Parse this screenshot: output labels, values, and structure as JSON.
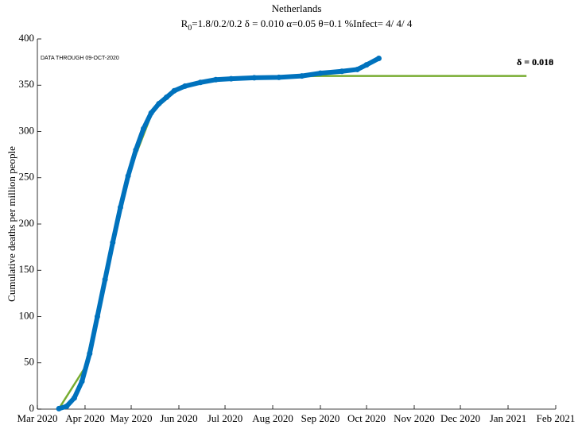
{
  "chart_data": {
    "type": "line",
    "title": "Netherlands",
    "subtitle": [
      "R",
      "0",
      "=1.8/0.2/0.2  δ = 0.010  α=0.05  θ=0.1  %Infect= 4/ 4/ 4"
    ],
    "y_label": "Cumulative deaths per million people",
    "annotations": [
      "DATA THROUGH 09-OCT-2020",
      "δ = 0.010",
      "δ = 0.018"
    ],
    "xlim": [
      "2020-03-01",
      "2021-02-01"
    ],
    "xticks": [
      {
        "value": "2020-03-01",
        "label": "Mar 2020"
      },
      {
        "value": "2020-04-01",
        "label": "Apr 2020"
      },
      {
        "value": "2020-05-01",
        "label": "May 2020"
      },
      {
        "value": "2020-06-01",
        "label": "Jun 2020"
      },
      {
        "value": "2020-07-01",
        "label": "Jul 2020"
      },
      {
        "value": "2020-08-01",
        "label": "Aug 2020"
      },
      {
        "value": "2020-09-01",
        "label": "Sep 2020"
      },
      {
        "value": "2020-10-01",
        "label": "Oct 2020"
      },
      {
        "value": "2020-11-01",
        "label": "Nov 2020"
      },
      {
        "value": "2020-12-01",
        "label": "Dec 2020"
      },
      {
        "value": "2021-01-01",
        "label": "Jan 2021"
      },
      {
        "value": "2021-02-01",
        "label": "Feb 2021"
      }
    ],
    "ylim": [
      0,
      400
    ],
    "yticks": [
      0,
      50,
      100,
      150,
      200,
      250,
      300,
      350,
      400
    ],
    "series": [
      {
        "color": "#77ac30",
        "x": [
          "2020-03-15",
          "2020-04-01",
          "2020-04-15",
          "2020-05-01",
          "2020-05-15",
          "2020-06-01",
          "2020-07-01",
          "2020-08-01",
          "2020-09-01",
          "2021-01-13"
        ],
        "values": [
          0.5,
          45,
          148,
          262,
          322,
          347,
          357,
          359,
          360,
          360
        ]
      },
      {
        "color": "#0072bd",
        "x": [
          "2020-03-15",
          "2020-03-20",
          "2020-03-25",
          "2020-03-30",
          "2020-04-04",
          "2020-04-09",
          "2020-04-14",
          "2020-04-19",
          "2020-04-24",
          "2020-04-29",
          "2020-05-04",
          "2020-05-09",
          "2020-05-14",
          "2020-05-19",
          "2020-05-24",
          "2020-05-29",
          "2020-06-05",
          "2020-06-15",
          "2020-06-25",
          "2020-07-05",
          "2020-07-20",
          "2020-08-05",
          "2020-08-20",
          "2020-09-01",
          "2020-09-15",
          "2020-09-25",
          "2020-10-01",
          "2020-10-09"
        ],
        "values": [
          0.5,
          3,
          12,
          30,
          60,
          100,
          140,
          180,
          218,
          252,
          280,
          303,
          320,
          330,
          337,
          344,
          349,
          353,
          356,
          357,
          358,
          358.5,
          360,
          363,
          365,
          367,
          372,
          379
        ]
      }
    ]
  }
}
